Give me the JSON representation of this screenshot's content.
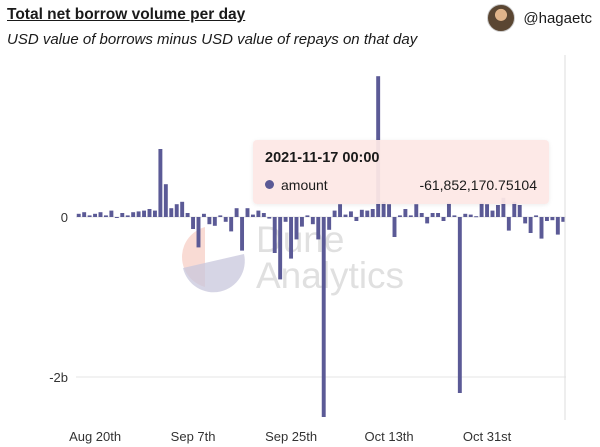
{
  "header": {
    "title": "Total net borrow volume per day",
    "subtitle": "USD value of borrows minus USD value of repays on that day",
    "author_handle": "@hagaetc"
  },
  "watermark": {
    "line1": "Dune",
    "line2": "Analytics"
  },
  "tooltip": {
    "timestamp": "2021-11-17 00:00",
    "series_label": "amount",
    "value": "-61,852,170.75104"
  },
  "colors": {
    "bar": "#5b5a96",
    "grid": "#e6e6e6",
    "tooltip_bg": "#fde8e5"
  },
  "chart_data": {
    "type": "bar",
    "title": "Total net borrow volume per day",
    "subtitle": "USD value of borrows minus USD value of repays on that day",
    "xlabel": "",
    "ylabel": "",
    "x_tick_labels": [
      "Aug 20th",
      "Sep 7th",
      "Sep 25th",
      "Oct 13th",
      "Oct 31st"
    ],
    "y_tick_labels": [
      "0",
      "-2b"
    ],
    "ylim": [
      -2.5,
      1.8
    ],
    "y_unit": "billion USD",
    "grid": true,
    "legend": "none",
    "series": [
      {
        "name": "amount",
        "values": [
          0.04,
          0.06,
          0.02,
          0.04,
          0.06,
          0.02,
          0.08,
          -0.01,
          0.05,
          0.02,
          0.06,
          0.07,
          0.08,
          0.1,
          0.08,
          0.85,
          0.41,
          0.11,
          0.16,
          0.19,
          0.05,
          -0.15,
          -0.38,
          0.04,
          -0.09,
          -0.11,
          0.02,
          -0.06,
          -0.18,
          0.11,
          -0.42,
          0.11,
          0.03,
          0.08,
          0.05,
          -0.02,
          -0.45,
          -0.78,
          -0.06,
          -0.52,
          -0.28,
          -0.12,
          0.02,
          -0.09,
          -0.28,
          -2.5,
          -0.16,
          0.08,
          0.16,
          0.03,
          0.07,
          -0.05,
          0.09,
          0.08,
          0.1,
          1.76,
          0.19,
          0.16,
          -0.25,
          0.02,
          0.1,
          0.02,
          0.16,
          0.05,
          -0.08,
          0.05,
          0.05,
          -0.05,
          0.18,
          0.02,
          -2.2,
          0.04,
          0.03,
          0.01,
          0.18,
          0.16,
          0.08,
          0.15,
          0.24,
          -0.17,
          0.19,
          0.15,
          -0.08,
          -0.2,
          0.02,
          -0.27,
          -0.05,
          -0.04,
          -0.22,
          -0.06
        ]
      }
    ]
  }
}
